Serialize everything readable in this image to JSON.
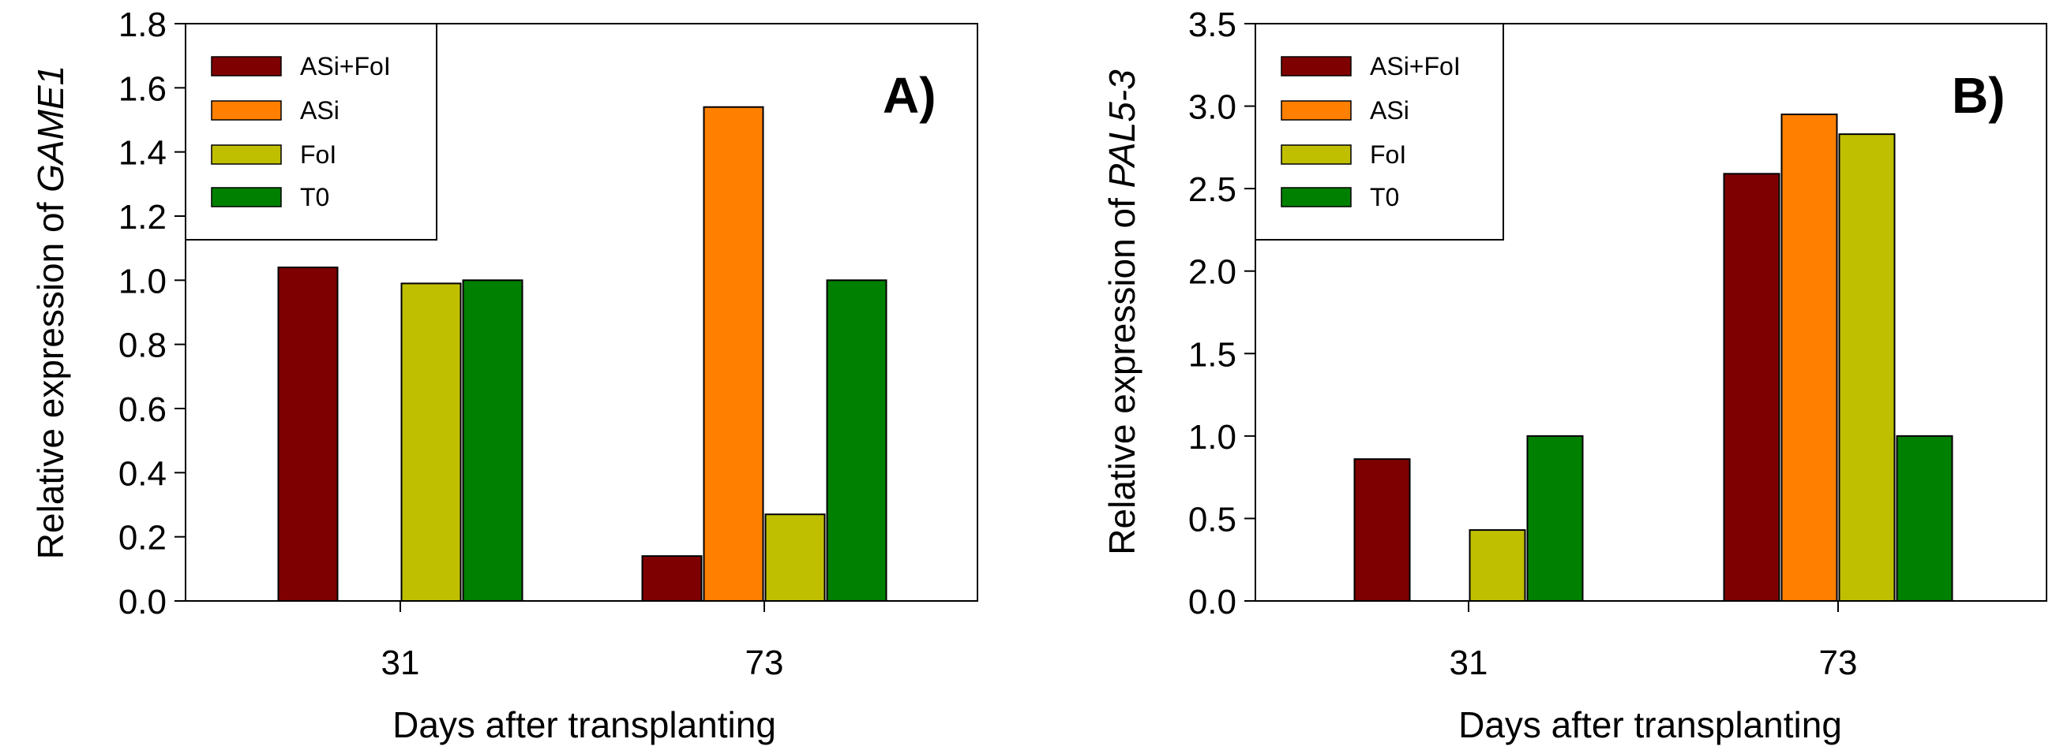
{
  "series_colors": {
    "ASi+FoI": "#7f0000",
    "ASi": "#ff8000",
    "FoI": "#bfbf00",
    "T0": "#008000"
  },
  "chart_data": [
    {
      "type": "bar",
      "panel_label": "A)",
      "categories": [
        "31",
        "73"
      ],
      "series": [
        {
          "name": "ASi+FoI",
          "values": [
            1.04,
            0.14
          ]
        },
        {
          "name": "ASi",
          "values": [
            0,
            1.54
          ]
        },
        {
          "name": "FoI",
          "values": [
            0.99,
            0.27
          ]
        },
        {
          "name": "T0",
          "values": [
            1.0,
            1.0
          ]
        }
      ],
      "xlabel": "Days after transplanting",
      "ylabel_prefix": "Relative expression of ",
      "ylabel_gene": "GAME1",
      "ylim": [
        0,
        1.8
      ],
      "yticks": [
        "0.0",
        "0.2",
        "0.4",
        "0.6",
        "0.8",
        "1.0",
        "1.2",
        "1.4",
        "1.6",
        "1.8"
      ],
      "legend_position": "top-left",
      "grid": false
    },
    {
      "type": "bar",
      "panel_label": "B)",
      "categories": [
        "31",
        "73"
      ],
      "series": [
        {
          "name": "ASi+FoI",
          "values": [
            0.86,
            2.59
          ]
        },
        {
          "name": "ASi",
          "values": [
            0,
            2.95
          ]
        },
        {
          "name": "FoI",
          "values": [
            0.43,
            2.83
          ]
        },
        {
          "name": "T0",
          "values": [
            1.0,
            1.0
          ]
        }
      ],
      "xlabel": "Days after transplanting",
      "ylabel_prefix": "Relative expression of ",
      "ylabel_gene": "PAL5-3",
      "ylim": [
        0,
        3.5
      ],
      "yticks": [
        "0.0",
        "0.5",
        "1.0",
        "1.5",
        "2.0",
        "2.5",
        "3.0",
        "3.5"
      ],
      "legend_position": "top-left",
      "grid": false
    }
  ]
}
